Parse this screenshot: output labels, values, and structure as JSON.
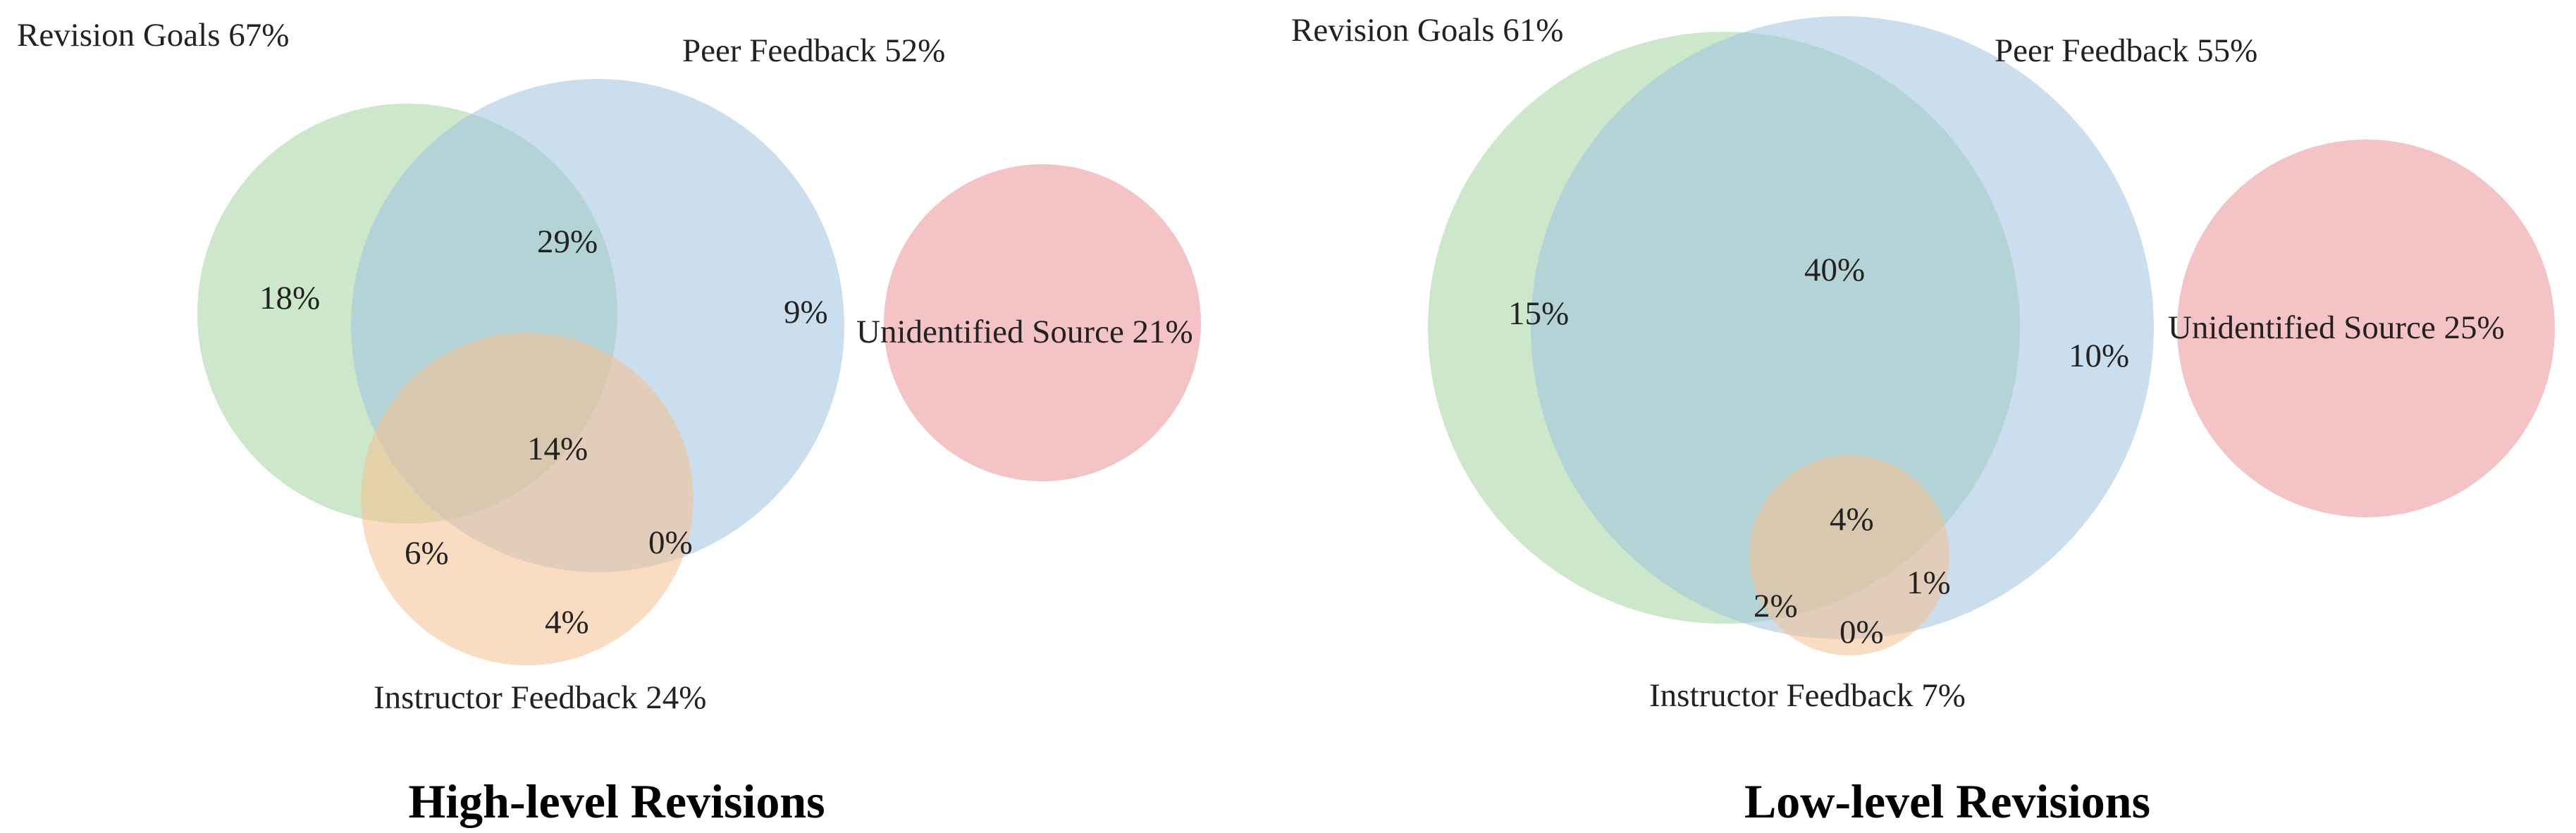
{
  "colors": {
    "revision_goals": "#a3d39c",
    "peer_feedback": "#9ec2e0",
    "instructor_feedback": "#f6c08f",
    "unidentified_source": "#ee9ea3"
  },
  "diagrams": [
    {
      "title": "High-level Revisions",
      "sets": [
        {
          "key": "revision_goals",
          "label": "Revision Goals 67%"
        },
        {
          "key": "peer_feedback",
          "label": "Peer Feedback 52%"
        },
        {
          "key": "instructor_feedback",
          "label": "Instructor Feedback 24%"
        },
        {
          "key": "unidentified_source",
          "label": "Unidentified Source 21%"
        }
      ],
      "regions": {
        "revision_goals_only": "18%",
        "revision_goals_peer_feedback": "29%",
        "peer_feedback_only": "9%",
        "all_three": "14%",
        "revision_goals_instructor_feedback": "6%",
        "peer_feedback_instructor_feedback": "0%",
        "instructor_feedback_only": "4%"
      }
    },
    {
      "title": "Low-level Revisions",
      "sets": [
        {
          "key": "revision_goals",
          "label": "Revision Goals 61%"
        },
        {
          "key": "peer_feedback",
          "label": "Peer Feedback 55%"
        },
        {
          "key": "instructor_feedback",
          "label": "Instructor Feedback 7%"
        },
        {
          "key": "unidentified_source",
          "label": "Unidentified Source 25%"
        }
      ],
      "regions": {
        "revision_goals_only": "15%",
        "revision_goals_peer_feedback": "40%",
        "peer_feedback_only": "10%",
        "all_three": "4%",
        "revision_goals_instructor_feedback": "2%",
        "peer_feedback_instructor_feedback": "1%",
        "instructor_feedback_only": "0%"
      }
    }
  ]
}
